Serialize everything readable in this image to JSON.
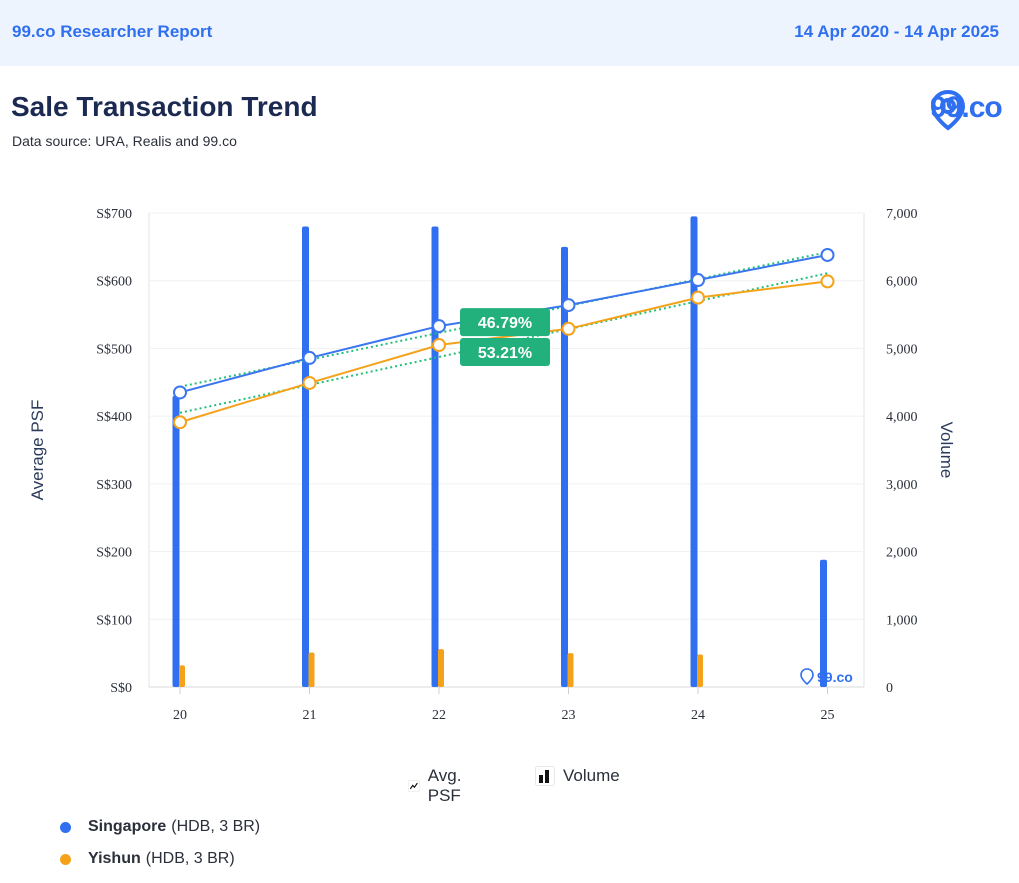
{
  "header": {
    "report_name": "99.co Researcher Report",
    "date_range": "14 Apr 2020 - 14 Apr 2025"
  },
  "title": "Sale Transaction Trend",
  "subtitle": "Data source: URA, Realis and 99.co",
  "brand": {
    "logo_text": "99.co",
    "watermark_text": "99.co",
    "color": "#2f6ff0"
  },
  "legend": {
    "avg_psf_label": "Avg. PSF",
    "volume_label": "Volume"
  },
  "series_legend": [
    {
      "name": "Singapore",
      "detail": "(HDB, 3 BR)",
      "color": "#2f6ff0"
    },
    {
      "name": "Yishun",
      "detail": "(HDB, 3 BR)",
      "color": "#f5a21b"
    }
  ],
  "chart_data": {
    "type": "bar",
    "categories": [
      "20",
      "21",
      "22",
      "23",
      "24",
      "25"
    ],
    "ylabel": "Average PSF",
    "y2label": "Volume",
    "ylim": [
      0,
      700
    ],
    "y2lim": [
      0,
      7000
    ],
    "y_ticks": [
      "S$0",
      "S$100",
      "S$200",
      "S$300",
      "S$400",
      "S$500",
      "S$600",
      "S$700"
    ],
    "y2_ticks": [
      "0",
      "1,000",
      "2,000",
      "3,000",
      "4,000",
      "5,000",
      "6,000",
      "7,000"
    ],
    "volume_series": [
      {
        "name": "Singapore",
        "color": "#2f6ff0",
        "values": [
          4300,
          6800,
          6800,
          6500,
          6950,
          1880
        ]
      },
      {
        "name": "Yishun",
        "color": "#f5a21b",
        "values": [
          320,
          510,
          560,
          500,
          480,
          0
        ]
      }
    ],
    "psf_series": [
      {
        "name": "Singapore",
        "color": "#3b76f0",
        "values": [
          435,
          486,
          533,
          564,
          601,
          638
        ]
      },
      {
        "name": "Yishun",
        "color": "#f5a21b",
        "values": [
          391,
          449,
          505,
          529,
          575,
          599
        ]
      }
    ],
    "trendline_color": "#1fbf78",
    "annotations": [
      {
        "text": "46.79%",
        "color": "#22b07d"
      },
      {
        "text": "53.21%",
        "color": "#22b07d"
      }
    ],
    "grid": true
  }
}
